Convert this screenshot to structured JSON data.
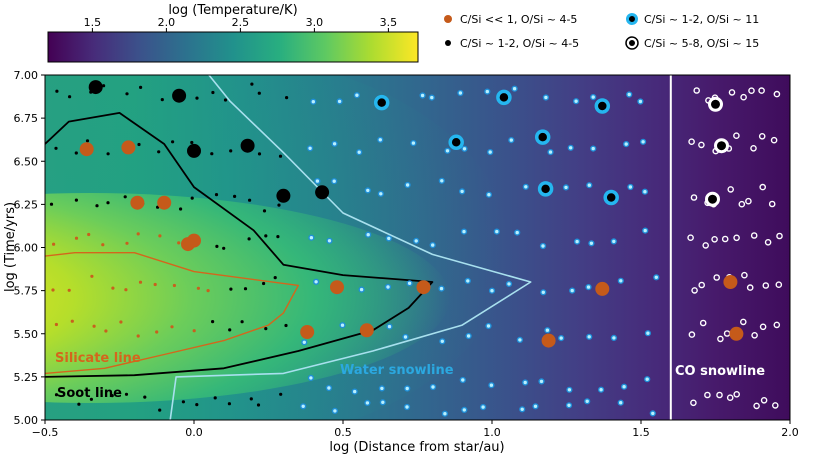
{
  "chart_data": {
    "type": "heatmap",
    "xlabel": "log (Distance from star/au)",
    "ylabel": "log (Time/yrs)",
    "xlim": [
      -0.5,
      2.0
    ],
    "ylim": [
      5.0,
      7.0
    ],
    "x_ticks": [
      -0.5,
      0.0,
      0.5,
      1.0,
      1.5,
      2.0
    ],
    "x_tick_labels": [
      "−0.5",
      "0.0",
      "0.5",
      "1.0",
      "1.5",
      "2.0"
    ],
    "y_ticks": [
      5.0,
      5.25,
      5.5,
      5.75,
      6.0,
      6.25,
      6.5,
      6.75,
      7.0
    ],
    "y_tick_labels": [
      "5.00",
      "5.25",
      "5.50",
      "5.75",
      "6.00",
      "6.25",
      "6.50",
      "6.75",
      "7.00"
    ],
    "colorbar": {
      "label": "log (Temperature/K)",
      "range": [
        1.2,
        3.7
      ],
      "ticks": [
        1.5,
        2.0,
        2.5,
        3.0,
        3.5
      ],
      "tick_labels": [
        "1.5",
        "2.0",
        "2.5",
        "3.0",
        "3.5"
      ],
      "colormap": "viridis"
    },
    "legend": [
      {
        "label": "C/Si << 1,   O/Si ~ 4-5",
        "marker": "orange-dot"
      },
      {
        "label": "C/Si ~ 1-2,  O/Si ~ 4-5",
        "marker": "black-dot"
      },
      {
        "label": "C/Si ~ 1-2,  O/Si ~ 11",
        "marker": "blue-ring"
      },
      {
        "label": "C/Si ~ 5-8,  O/Si ~ 15",
        "marker": "white-ring"
      }
    ],
    "annotations": [
      {
        "text": "Silicate line",
        "color": "#d4661c"
      },
      {
        "text": "Soot line",
        "color": "#000000"
      },
      {
        "text": "Water snowline",
        "color": "#2ba8e0"
      },
      {
        "text": "CO snowline",
        "color": "#ffffff"
      }
    ],
    "lines": {
      "silicate": [
        [
          -0.5,
          5.27
        ],
        [
          -0.3,
          5.3
        ],
        [
          -0.1,
          5.38
        ],
        [
          0.1,
          5.46
        ],
        [
          0.25,
          5.55
        ],
        [
          0.3,
          5.62
        ],
        [
          0.35,
          5.78
        ],
        [
          0.0,
          5.86
        ],
        [
          -0.2,
          5.97
        ],
        [
          -0.4,
          5.97
        ],
        [
          -0.5,
          5.95
        ]
      ],
      "soot": [
        [
          -0.5,
          5.25
        ],
        [
          -0.2,
          5.26
        ],
        [
          0.1,
          5.3
        ],
        [
          0.35,
          5.4
        ],
        [
          0.6,
          5.52
        ],
        [
          0.72,
          5.65
        ],
        [
          0.8,
          5.8
        ],
        [
          0.5,
          5.84
        ],
        [
          0.3,
          5.9
        ],
        [
          0.2,
          6.1
        ],
        [
          0.0,
          6.35
        ],
        [
          -0.1,
          6.6
        ],
        [
          -0.25,
          6.78
        ],
        [
          -0.42,
          6.73
        ],
        [
          -0.5,
          6.6
        ]
      ],
      "water_snowline": [
        [
          -0.08,
          5.0
        ],
        [
          -0.06,
          5.25
        ],
        [
          0.3,
          5.27
        ],
        [
          0.6,
          5.4
        ],
        [
          0.9,
          5.55
        ],
        [
          1.13,
          5.8
        ],
        [
          0.8,
          5.96
        ],
        [
          0.5,
          6.2
        ],
        [
          0.3,
          6.55
        ],
        [
          0.12,
          6.85
        ],
        [
          0.05,
          7.0
        ]
      ],
      "co_snowline": [
        [
          1.6,
          5.0
        ],
        [
          1.6,
          7.0
        ]
      ]
    },
    "series": [
      {
        "name": "C/Si << 1,   O/Si ~ 4-5",
        "x": [
          -0.36,
          -0.22,
          -0.19,
          -0.1,
          0.0,
          -0.02,
          0.48,
          0.77,
          0.58,
          0.38,
          1.37,
          1.19,
          1.8,
          1.82
        ],
        "y": [
          6.57,
          6.58,
          6.26,
          6.26,
          6.04,
          6.02,
          5.77,
          5.77,
          5.52,
          5.51,
          5.76,
          5.46,
          5.8,
          5.5
        ]
      },
      {
        "name": "C/Si ~ 1-2,  O/Si ~ 4-5",
        "x": [
          -0.33,
          -0.05,
          0.0,
          0.18,
          0.3,
          0.43
        ],
        "y": [
          6.93,
          6.88,
          6.56,
          6.59,
          6.3,
          6.32
        ]
      },
      {
        "name": "C/Si ~ 1-2,  O/Si ~ 11",
        "x": [
          0.63,
          0.88,
          1.04,
          1.17,
          1.37,
          1.18,
          1.4
        ],
        "y": [
          6.84,
          6.61,
          6.87,
          6.64,
          6.82,
          6.34,
          6.29
        ]
      },
      {
        "name": "C/Si ~ 5-8,  O/Si ~ 15",
        "x": [
          1.75,
          1.77,
          1.74
        ],
        "y": [
          6.83,
          6.59,
          6.28
        ]
      }
    ]
  }
}
